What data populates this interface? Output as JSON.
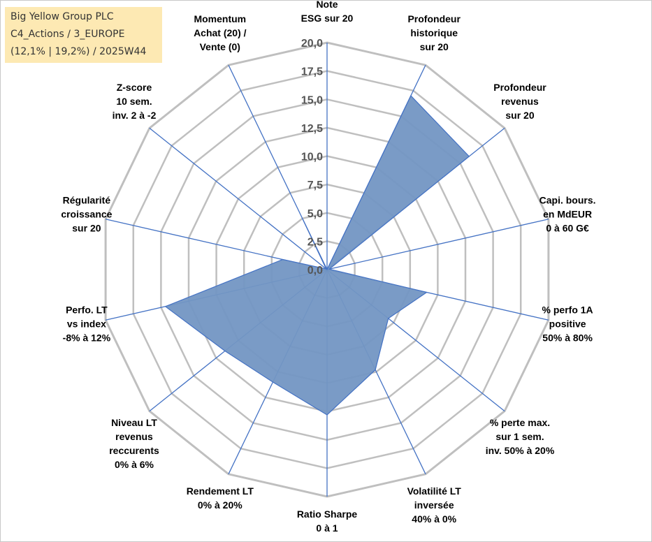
{
  "title_box": {
    "line1": "Big Yellow Group PLC",
    "line2": "C4_Actions / 3_EUROPE",
    "line3": "(12,1% | 19,2%) / 2025W44"
  },
  "colors": {
    "fill": "#7396c3",
    "stroke": "#4472c4",
    "axis": "#4472c4",
    "grid": "#bfbfbf",
    "title_bg": "#fde9b3"
  },
  "chart_data": {
    "type": "radar",
    "range": [
      0,
      20
    ],
    "grid": true,
    "ticks": [
      "0,0",
      "2,5",
      "5,0",
      "7,5",
      "10,0",
      "12,5",
      "15,0",
      "17,5",
      "20,0"
    ],
    "axes": [
      {
        "lines": [
          "Note",
          "ESG sur 20"
        ],
        "value": 0
      },
      {
        "lines": [
          "Profondeur",
          "historique",
          "sur 20"
        ],
        "value": 17.0
      },
      {
        "lines": [
          "Profondeur",
          "revenus",
          "sur 20"
        ],
        "value": 16.0
      },
      {
        "lines": [
          "Capi. bours.",
          "en MdEUR",
          "0 à 60 G€"
        ],
        "value": 0.2
      },
      {
        "lines": [
          "% perfo 1A",
          "positive",
          "50% à 80%"
        ],
        "value": 9.0
      },
      {
        "lines": [
          "% perte max.",
          "sur 1 sem.",
          "inv. 50% à 20%"
        ],
        "value": 6.9
      },
      {
        "lines": [
          "Volatilité LT",
          "inversée",
          "40% à 0%"
        ],
        "value": 9.8
      },
      {
        "lines": [
          "Ratio Sharpe",
          "0 à 1"
        ],
        "value": 12.8
      },
      {
        "lines": [
          "Rendement LT",
          "0% à 20%"
        ],
        "value": 11.0
      },
      {
        "lines": [
          "Niveau LT",
          "revenus",
          "reccurents",
          "0% à 6%"
        ],
        "value": 11.5
      },
      {
        "lines": [
          "Perfo. LT",
          "vs index",
          "-8% à 12%"
        ],
        "value": 14.6
      },
      {
        "lines": [
          "Régularité",
          "croissance",
          "sur 20"
        ],
        "value": 4.0
      },
      {
        "lines": [
          "Z-score",
          "10 sem.",
          "inv. 2 à -2"
        ],
        "value": 0.1
      },
      {
        "lines": [
          "Momentum",
          "Achat (20) /",
          "Vente (0)"
        ],
        "value": 5.0
      }
    ]
  }
}
